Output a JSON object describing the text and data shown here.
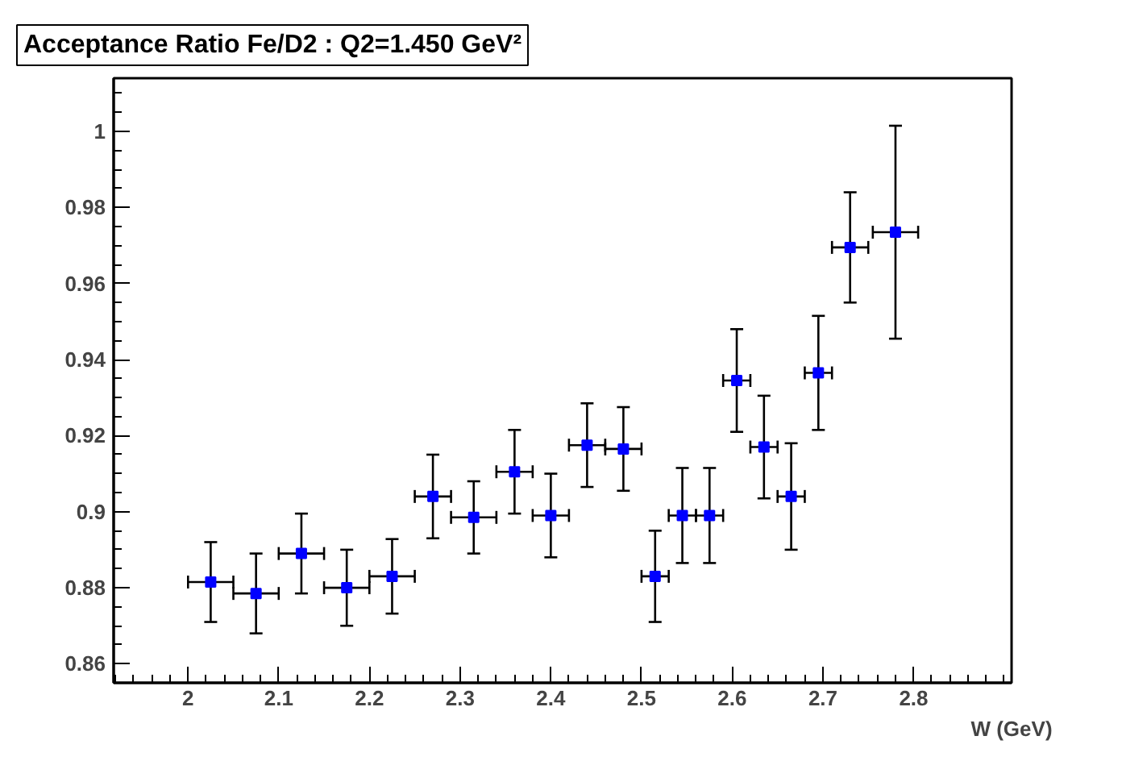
{
  "chart_data": {
    "type": "scatter",
    "title": "Acceptance Ratio Fe/D2 : Q2=1.450 GeV²",
    "xlabel": "W (GeV)",
    "x": [
      2.025,
      2.075,
      2.125,
      2.175,
      2.225,
      2.27,
      2.315,
      2.36,
      2.4,
      2.44,
      2.48,
      2.515,
      2.545,
      2.575,
      2.605,
      2.635,
      2.665,
      2.695,
      2.73,
      2.78
    ],
    "series": [
      {
        "color": "#0000ff",
        "values": [
          0.8815,
          0.8785,
          0.889,
          0.88,
          0.883,
          0.904,
          0.8985,
          0.9105,
          0.899,
          0.9175,
          0.9165,
          0.883,
          0.899,
          0.899,
          0.9345,
          0.917,
          0.904,
          0.9365,
          0.9695,
          0.9735
        ],
        "errors": [
          0.0105,
          0.0105,
          0.0105,
          0.01,
          0.0098,
          0.011,
          0.0095,
          0.011,
          0.011,
          0.011,
          0.011,
          0.012,
          0.0125,
          0.0125,
          0.0135,
          0.0135,
          0.014,
          0.015,
          0.0145,
          0.028
        ],
        "xerrors": [
          0.025,
          0.025,
          0.025,
          0.025,
          0.025,
          0.02,
          0.025,
          0.02,
          0.02,
          0.02,
          0.02,
          0.015,
          0.015,
          0.015,
          0.015,
          0.015,
          0.015,
          0.015,
          0.02,
          0.025
        ]
      }
    ],
    "xlim": [
      1.918,
      2.908
    ],
    "ylim": [
      0.855,
      1.014
    ],
    "xticks": [
      2,
      2.1,
      2.2,
      2.3,
      2.4,
      2.5,
      2.6,
      2.7,
      2.8
    ],
    "yticks": [
      0.86,
      0.88,
      0.9,
      0.92,
      0.94,
      0.96,
      0.98,
      1
    ],
    "marker": "square",
    "grid": false
  }
}
